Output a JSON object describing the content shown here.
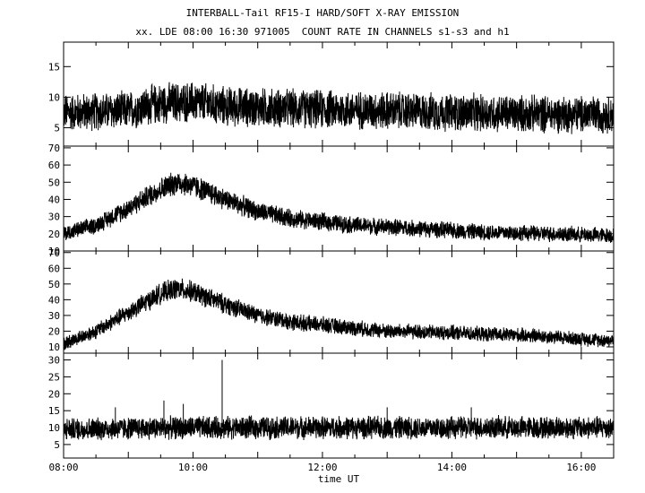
{
  "title": "INTERBALL-Tail RF15-I HARD/SOFT X-RAY EMISSION",
  "subtitle": "xx. LDE 08:00 16:30 971005  COUNT RATE IN CHANNELS s1-s3 and h1",
  "chart_data": [
    {
      "type": "line",
      "panel": 1,
      "xlim": [
        "08:00",
        "16:30"
      ],
      "ylim": [
        2,
        19
      ],
      "yticks": [
        5,
        10,
        15
      ],
      "baseline": [
        [
          8.0,
          7.5
        ],
        [
          9.0,
          7.8
        ],
        [
          9.5,
          9.0
        ],
        [
          10.0,
          9.2
        ],
        [
          10.5,
          8.5
        ],
        [
          11.0,
          8.3
        ],
        [
          12.0,
          8.0
        ],
        [
          13.0,
          7.8
        ],
        [
          14.0,
          7.5
        ],
        [
          15.0,
          7.3
        ],
        [
          16.0,
          7.2
        ],
        [
          16.5,
          7.2
        ]
      ],
      "noise": 4.0,
      "spikes": []
    },
    {
      "type": "line",
      "panel": 2,
      "xlim": [
        "08:00",
        "16:30"
      ],
      "ylim": [
        10,
        71
      ],
      "yticks": [
        10,
        20,
        30,
        40,
        50,
        60,
        70
      ],
      "baseline": [
        [
          8.0,
          20
        ],
        [
          8.5,
          25
        ],
        [
          9.0,
          35
        ],
        [
          9.5,
          46
        ],
        [
          9.75,
          50
        ],
        [
          10.0,
          48
        ],
        [
          10.5,
          40
        ],
        [
          11.0,
          33
        ],
        [
          11.5,
          29
        ],
        [
          12.0,
          27
        ],
        [
          12.5,
          25
        ],
        [
          13.0,
          24
        ],
        [
          13.5,
          23
        ],
        [
          14.0,
          22
        ],
        [
          14.5,
          21
        ],
        [
          15.0,
          20.5
        ],
        [
          15.5,
          20
        ],
        [
          16.0,
          19.5
        ],
        [
          16.5,
          19
        ]
      ],
      "noise": 7.0,
      "spikes": []
    },
    {
      "type": "line",
      "panel": 3,
      "xlim": [
        "08:00",
        "16:30"
      ],
      "ylim": [
        6,
        71
      ],
      "yticks": [
        10,
        20,
        30,
        40,
        50,
        60,
        70
      ],
      "baseline": [
        [
          8.0,
          12
        ],
        [
          8.5,
          20
        ],
        [
          9.0,
          32
        ],
        [
          9.5,
          44
        ],
        [
          9.75,
          47
        ],
        [
          10.0,
          45
        ],
        [
          10.5,
          37
        ],
        [
          11.0,
          30
        ],
        [
          11.5,
          26
        ],
        [
          12.0,
          24
        ],
        [
          12.5,
          22
        ],
        [
          13.0,
          20
        ],
        [
          13.5,
          19.5
        ],
        [
          14.0,
          19
        ],
        [
          14.5,
          18
        ],
        [
          15.0,
          17.5
        ],
        [
          15.5,
          16.5
        ],
        [
          16.0,
          15
        ],
        [
          16.5,
          14
        ]
      ],
      "noise": 7.0,
      "spikes": []
    },
    {
      "type": "line",
      "panel": 4,
      "xlim": [
        "08:00",
        "16:30"
      ],
      "ylim": [
        1,
        32
      ],
      "yticks": [
        5,
        10,
        15,
        20,
        25,
        30
      ],
      "baseline": [
        [
          8.0,
          9.5
        ],
        [
          9.0,
          9.8
        ],
        [
          10.0,
          10.0
        ],
        [
          11.0,
          10.0
        ],
        [
          12.0,
          10.0
        ],
        [
          13.0,
          10.0
        ],
        [
          14.0,
          10.0
        ],
        [
          15.0,
          10.0
        ],
        [
          16.0,
          10.0
        ],
        [
          16.5,
          10.0
        ]
      ],
      "noise": 4.5,
      "spikes": [
        [
          10.45,
          30
        ],
        [
          9.55,
          18
        ],
        [
          9.85,
          17
        ],
        [
          8.8,
          16
        ],
        [
          13.0,
          16
        ],
        [
          14.3,
          16
        ]
      ]
    }
  ],
  "xaxis": {
    "ticks": [
      "08:00",
      "10:00",
      "12:00",
      "14:00",
      "16:00"
    ],
    "label": "time UT"
  }
}
